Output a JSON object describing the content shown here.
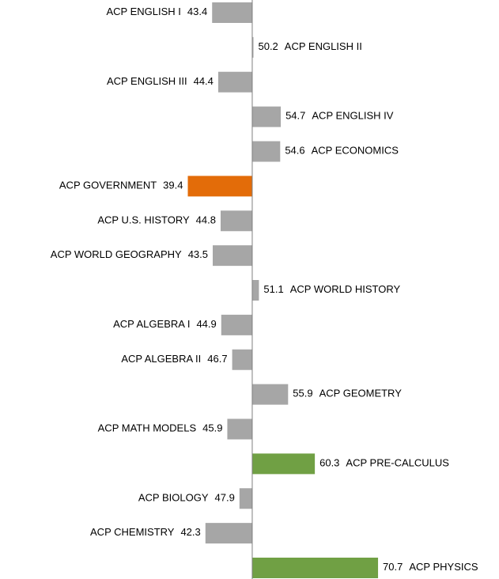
{
  "chart_data": {
    "type": "bar",
    "orientation": "horizontal",
    "categories": [
      "ACP ENGLISH I",
      "ACP ENGLISH II",
      "ACP ENGLISH III",
      "ACP ENGLISH IV",
      "ACP ECONOMICS",
      "ACP GOVERNMENT",
      "ACP U.S. HISTORY",
      "ACP WORLD GEOGRAPHY",
      "ACP WORLD HISTORY",
      "ACP ALGEBRA I",
      "ACP ALGEBRA II",
      "ACP GEOMETRY",
      "ACP MATH MODELS",
      "ACP PRE-CALCULUS",
      "ACP BIOLOGY",
      "ACP CHEMISTRY",
      "ACP PHYSICS"
    ],
    "values": [
      43.4,
      50.2,
      44.4,
      54.7,
      54.6,
      39.4,
      44.8,
      43.5,
      51.1,
      44.9,
      46.7,
      55.9,
      45.9,
      60.3,
      47.9,
      42.3,
      70.7
    ],
    "colors": [
      "#a6a6a6",
      "#a6a6a6",
      "#a6a6a6",
      "#a6a6a6",
      "#a6a6a6",
      "#e36c09",
      "#a6a6a6",
      "#a6a6a6",
      "#a6a6a6",
      "#a6a6a6",
      "#a6a6a6",
      "#a6a6a6",
      "#a6a6a6",
      "#70a044",
      "#a6a6a6",
      "#a6a6a6",
      "#70a044"
    ],
    "baseline": 50,
    "xlim": [
      8.5,
      90.6
    ]
  }
}
